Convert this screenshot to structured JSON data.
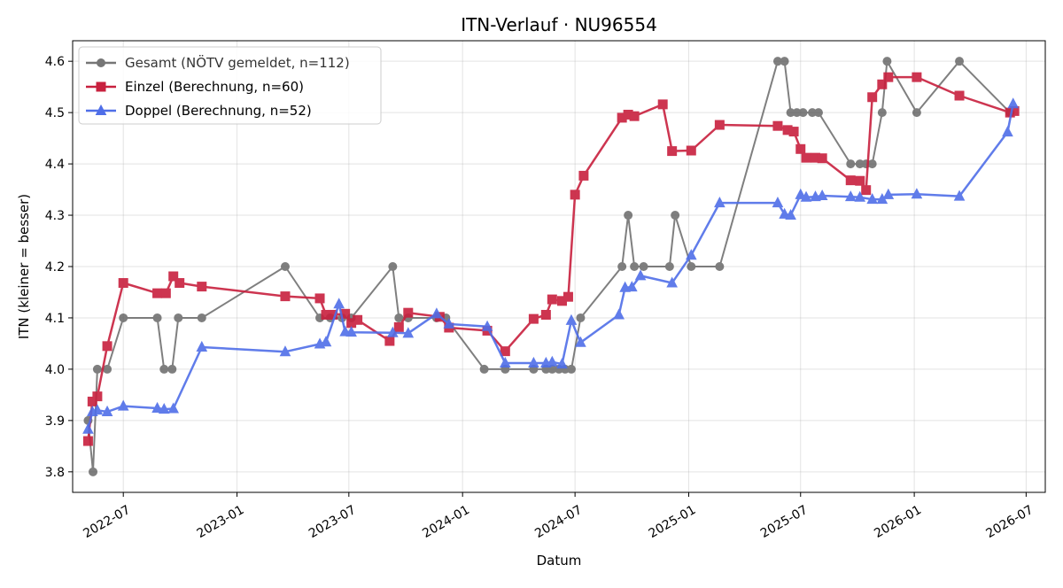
{
  "chart_data": {
    "type": "line",
    "title": "ITN-Verlauf · NU96554",
    "xlabel": "Datum",
    "ylabel": "ITN  (kleiner = besser)",
    "xlim": [
      "2022-04-10",
      "2026-08-01"
    ],
    "ylim": [
      3.76,
      4.64
    ],
    "x_ticks": [
      "2022-07-01",
      "2023-01-01",
      "2023-07-01",
      "2024-01-01",
      "2024-07-01",
      "2025-01-01",
      "2025-07-01",
      "2026-01-01",
      "2026-07-01"
    ],
    "x_tick_labels": [
      "2022-07",
      "2023-01",
      "2023-07",
      "2024-01",
      "2024-07",
      "2025-01",
      "2025-07",
      "2026-01",
      "2026-07"
    ],
    "y_ticks": [
      3.8,
      3.9,
      4.0,
      4.1,
      4.2,
      4.3,
      4.4,
      4.5,
      4.6
    ],
    "y_tick_labels": [
      "3.8",
      "3.9",
      "4.0",
      "4.1",
      "4.2",
      "4.3",
      "4.4",
      "4.5",
      "4.6"
    ],
    "grid": true,
    "legend_position": "top-left",
    "series": [
      {
        "name": "Gesamt (NÖTV gemeldet, n=112)",
        "color": "#555555",
        "marker": "circle",
        "points": [
          [
            "2022-05-05",
            3.9
          ],
          [
            "2022-05-13",
            3.8
          ],
          [
            "2022-05-20",
            4.0
          ],
          [
            "2022-06-05",
            4.0
          ],
          [
            "2022-07-01",
            4.1
          ],
          [
            "2022-08-25",
            4.1
          ],
          [
            "2022-09-05",
            4.0
          ],
          [
            "2022-09-18",
            4.0
          ],
          [
            "2022-09-28",
            4.1
          ],
          [
            "2022-11-05",
            4.1
          ],
          [
            "2023-03-20",
            4.2
          ],
          [
            "2023-05-15",
            4.1
          ],
          [
            "2023-06-01",
            4.1
          ],
          [
            "2023-06-20",
            4.1
          ],
          [
            "2023-07-05",
            4.1
          ],
          [
            "2023-09-10",
            4.2
          ],
          [
            "2023-09-20",
            4.1
          ],
          [
            "2023-10-05",
            4.1
          ],
          [
            "2023-11-20",
            4.1
          ],
          [
            "2023-12-05",
            4.1
          ],
          [
            "2024-02-05",
            4.0
          ],
          [
            "2024-03-10",
            4.0
          ],
          [
            "2024-04-25",
            4.0
          ],
          [
            "2024-05-15",
            4.0
          ],
          [
            "2024-05-25",
            4.0
          ],
          [
            "2024-06-05",
            4.0
          ],
          [
            "2024-06-15",
            4.0
          ],
          [
            "2024-06-25",
            4.0
          ],
          [
            "2024-07-10",
            4.1
          ],
          [
            "2024-09-15",
            4.2
          ],
          [
            "2024-09-25",
            4.3
          ],
          [
            "2024-10-05",
            4.2
          ],
          [
            "2024-10-20",
            4.2
          ],
          [
            "2024-12-01",
            4.2
          ],
          [
            "2024-12-10",
            4.3
          ],
          [
            "2025-01-05",
            4.2
          ],
          [
            "2025-02-20",
            4.2
          ],
          [
            "2025-05-25",
            4.6
          ],
          [
            "2025-06-05",
            4.6
          ],
          [
            "2025-06-15",
            4.5
          ],
          [
            "2025-06-25",
            4.5
          ],
          [
            "2025-07-05",
            4.5
          ],
          [
            "2025-07-20",
            4.5
          ],
          [
            "2025-07-30",
            4.5
          ],
          [
            "2025-09-20",
            4.4
          ],
          [
            "2025-10-05",
            4.4
          ],
          [
            "2025-10-15",
            4.4
          ],
          [
            "2025-10-25",
            4.4
          ],
          [
            "2025-11-10",
            4.5
          ],
          [
            "2025-11-18",
            4.6
          ],
          [
            "2026-01-05",
            4.5
          ],
          [
            "2026-03-15",
            4.6
          ],
          [
            "2026-06-05",
            4.5
          ]
        ]
      },
      {
        "name": "Einzel (Berechnung, n=60)",
        "color": "#c8203e",
        "marker": "square",
        "points": [
          [
            "2022-05-05",
            3.86
          ],
          [
            "2022-05-12",
            3.937
          ],
          [
            "2022-05-20",
            3.947
          ],
          [
            "2022-06-05",
            4.045
          ],
          [
            "2022-07-01",
            4.168
          ],
          [
            "2022-08-25",
            4.148
          ],
          [
            "2022-09-08",
            4.148
          ],
          [
            "2022-09-20",
            4.181
          ],
          [
            "2022-09-30",
            4.168
          ],
          [
            "2022-11-05",
            4.161
          ],
          [
            "2023-03-20",
            4.142
          ],
          [
            "2023-05-15",
            4.138
          ],
          [
            "2023-05-25",
            4.106
          ],
          [
            "2023-06-05",
            4.106
          ],
          [
            "2023-06-25",
            4.108
          ],
          [
            "2023-07-05",
            4.09
          ],
          [
            "2023-07-15",
            4.096
          ],
          [
            "2023-09-05",
            4.055
          ],
          [
            "2023-09-20",
            4.082
          ],
          [
            "2023-10-05",
            4.11
          ],
          [
            "2023-11-25",
            4.102
          ],
          [
            "2023-12-10",
            4.081
          ],
          [
            "2024-02-10",
            4.075
          ],
          [
            "2024-03-10",
            4.035
          ],
          [
            "2024-04-25",
            4.098
          ],
          [
            "2024-05-15",
            4.106
          ],
          [
            "2024-05-25",
            4.136
          ],
          [
            "2024-06-10",
            4.133
          ],
          [
            "2024-06-20",
            4.141
          ],
          [
            "2024-07-01",
            4.34
          ],
          [
            "2024-07-15",
            4.377
          ],
          [
            "2024-09-15",
            4.49
          ],
          [
            "2024-09-25",
            4.496
          ],
          [
            "2024-10-05",
            4.493
          ],
          [
            "2024-11-20",
            4.516
          ],
          [
            "2024-12-05",
            4.425
          ],
          [
            "2025-01-05",
            4.426
          ],
          [
            "2025-02-20",
            4.476
          ],
          [
            "2025-05-25",
            4.474
          ],
          [
            "2025-06-10",
            4.466
          ],
          [
            "2025-06-20",
            4.463
          ],
          [
            "2025-07-01",
            4.429
          ],
          [
            "2025-07-10",
            4.412
          ],
          [
            "2025-07-25",
            4.412
          ],
          [
            "2025-08-05",
            4.411
          ],
          [
            "2025-09-20",
            4.368
          ],
          [
            "2025-10-05",
            4.367
          ],
          [
            "2025-10-15",
            4.349
          ],
          [
            "2025-10-25",
            4.53
          ],
          [
            "2025-11-10",
            4.555
          ],
          [
            "2025-11-20",
            4.569
          ],
          [
            "2026-01-05",
            4.569
          ],
          [
            "2026-03-15",
            4.533
          ],
          [
            "2026-06-05",
            4.5
          ],
          [
            "2026-06-12",
            4.503
          ]
        ]
      },
      {
        "name": "Doppel (Berechnung, n=52)",
        "color": "#4f6ee8",
        "marker": "triangle",
        "points": [
          [
            "2022-05-05",
            3.883
          ],
          [
            "2022-05-12",
            3.917
          ],
          [
            "2022-05-20",
            3.92
          ],
          [
            "2022-06-05",
            3.917
          ],
          [
            "2022-07-01",
            3.928
          ],
          [
            "2022-08-25",
            3.924
          ],
          [
            "2022-09-05",
            3.922
          ],
          [
            "2022-09-20",
            3.923
          ],
          [
            "2022-11-05",
            4.043
          ],
          [
            "2023-03-20",
            4.034
          ],
          [
            "2023-05-15",
            4.049
          ],
          [
            "2023-05-25",
            4.053
          ],
          [
            "2023-06-15",
            4.127
          ],
          [
            "2023-06-25",
            4.073
          ],
          [
            "2023-07-05",
            4.072
          ],
          [
            "2023-09-10",
            4.071
          ],
          [
            "2023-10-05",
            4.07
          ],
          [
            "2023-11-20",
            4.108
          ],
          [
            "2023-12-10",
            4.088
          ],
          [
            "2024-02-10",
            4.083
          ],
          [
            "2024-03-10",
            4.012
          ],
          [
            "2024-04-25",
            4.012
          ],
          [
            "2024-05-15",
            4.012
          ],
          [
            "2024-05-25",
            4.014
          ],
          [
            "2024-06-10",
            4.01
          ],
          [
            "2024-06-25",
            4.095
          ],
          [
            "2024-07-10",
            4.052
          ],
          [
            "2024-09-10",
            4.106
          ],
          [
            "2024-09-20",
            4.159
          ],
          [
            "2024-10-01",
            4.16
          ],
          [
            "2024-10-15",
            4.182
          ],
          [
            "2024-12-05",
            4.168
          ],
          [
            "2025-01-05",
            4.222
          ],
          [
            "2025-02-20",
            4.324
          ],
          [
            "2025-05-25",
            4.324
          ],
          [
            "2025-06-05",
            4.302
          ],
          [
            "2025-06-15",
            4.3
          ],
          [
            "2025-07-01",
            4.34
          ],
          [
            "2025-07-10",
            4.335
          ],
          [
            "2025-07-25",
            4.336
          ],
          [
            "2025-08-05",
            4.338
          ],
          [
            "2025-09-20",
            4.336
          ],
          [
            "2025-10-05",
            4.335
          ],
          [
            "2025-10-25",
            4.331
          ],
          [
            "2025-11-10",
            4.331
          ],
          [
            "2025-11-20",
            4.34
          ],
          [
            "2026-01-05",
            4.341
          ],
          [
            "2026-03-15",
            4.337
          ],
          [
            "2026-06-01",
            4.462
          ],
          [
            "2026-06-10",
            4.517
          ]
        ]
      }
    ]
  }
}
